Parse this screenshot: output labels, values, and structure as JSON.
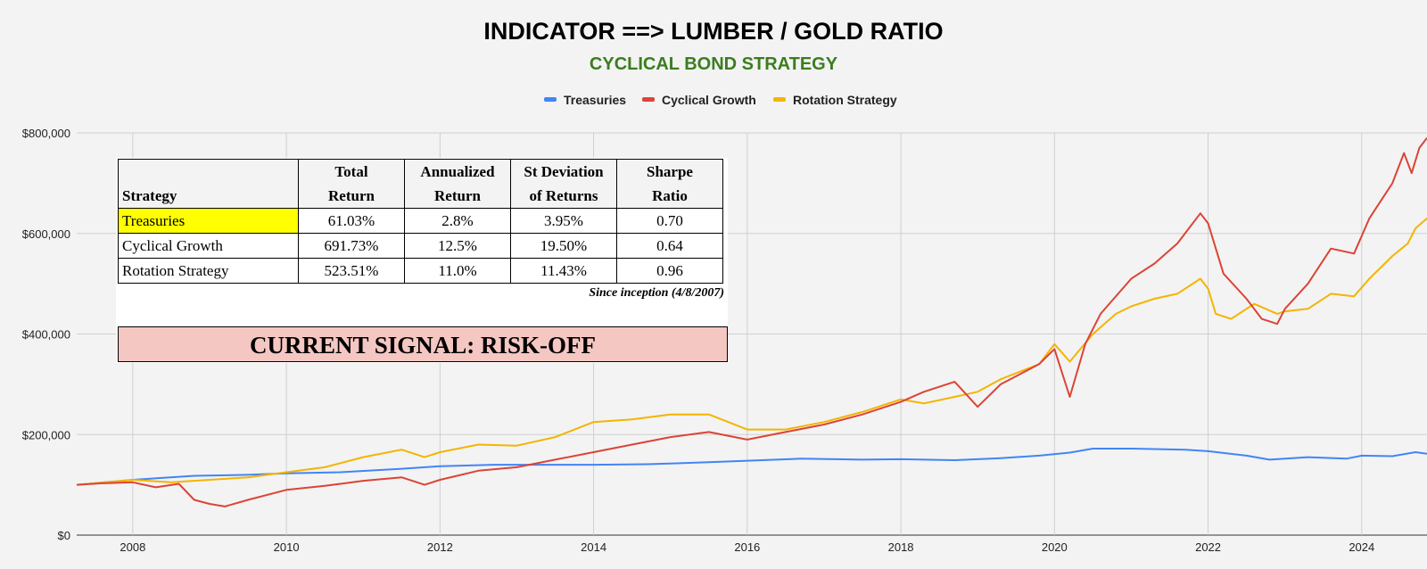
{
  "chart_data": {
    "type": "line",
    "title": "INDICATOR ==> LUMBER / GOLD RATIO",
    "subtitle": "CYCLICAL BOND STRATEGY",
    "xlim": [
      2007.27,
      2024.85
    ],
    "ylim": [
      0,
      800000
    ],
    "x_ticks": [
      "2008",
      "2010",
      "2012",
      "2014",
      "2016",
      "2018",
      "2020",
      "2022",
      "2024"
    ],
    "y_ticks": [
      "$0",
      "$200,000",
      "$400,000",
      "$600,000",
      "$800,000"
    ],
    "grid": true,
    "legend_position": "top",
    "series": [
      {
        "name": "Treasuries",
        "color": "#4285f4",
        "points": [
          [
            2007.27,
            100000
          ],
          [
            2008.0,
            110000
          ],
          [
            2008.8,
            118000
          ],
          [
            2009.5,
            120000
          ],
          [
            2010.0,
            123000
          ],
          [
            2010.7,
            125000
          ],
          [
            2011.5,
            132000
          ],
          [
            2012.0,
            137000
          ],
          [
            2012.7,
            140000
          ],
          [
            2013.5,
            140000
          ],
          [
            2014.0,
            140000
          ],
          [
            2014.7,
            141000
          ],
          [
            2015.5,
            145000
          ],
          [
            2016.0,
            148000
          ],
          [
            2016.7,
            152000
          ],
          [
            2017.5,
            150000
          ],
          [
            2018.0,
            151000
          ],
          [
            2018.7,
            149000
          ],
          [
            2019.3,
            153000
          ],
          [
            2019.8,
            158000
          ],
          [
            2020.2,
            164000
          ],
          [
            2020.5,
            172000
          ],
          [
            2021.0,
            172000
          ],
          [
            2021.7,
            170000
          ],
          [
            2022.0,
            167000
          ],
          [
            2022.5,
            158000
          ],
          [
            2022.8,
            150000
          ],
          [
            2023.3,
            155000
          ],
          [
            2023.8,
            152000
          ],
          [
            2024.0,
            158000
          ],
          [
            2024.4,
            157000
          ],
          [
            2024.7,
            165000
          ],
          [
            2024.85,
            162000
          ]
        ]
      },
      {
        "name": "Cyclical Growth",
        "color": "#db4437",
        "points": [
          [
            2007.27,
            100000
          ],
          [
            2007.6,
            103000
          ],
          [
            2008.0,
            105000
          ],
          [
            2008.3,
            95000
          ],
          [
            2008.6,
            102000
          ],
          [
            2008.8,
            70000
          ],
          [
            2009.0,
            62000
          ],
          [
            2009.2,
            57000
          ],
          [
            2009.5,
            70000
          ],
          [
            2010.0,
            90000
          ],
          [
            2010.5,
            98000
          ],
          [
            2011.0,
            108000
          ],
          [
            2011.5,
            115000
          ],
          [
            2011.8,
            100000
          ],
          [
            2012.0,
            110000
          ],
          [
            2012.5,
            128000
          ],
          [
            2013.0,
            135000
          ],
          [
            2013.5,
            150000
          ],
          [
            2014.0,
            165000
          ],
          [
            2014.5,
            180000
          ],
          [
            2015.0,
            195000
          ],
          [
            2015.5,
            205000
          ],
          [
            2016.0,
            190000
          ],
          [
            2016.5,
            205000
          ],
          [
            2017.0,
            220000
          ],
          [
            2017.5,
            240000
          ],
          [
            2018.0,
            265000
          ],
          [
            2018.3,
            285000
          ],
          [
            2018.7,
            305000
          ],
          [
            2019.0,
            255000
          ],
          [
            2019.3,
            300000
          ],
          [
            2019.8,
            340000
          ],
          [
            2020.0,
            370000
          ],
          [
            2020.2,
            275000
          ],
          [
            2020.4,
            380000
          ],
          [
            2020.6,
            440000
          ],
          [
            2021.0,
            510000
          ],
          [
            2021.3,
            540000
          ],
          [
            2021.6,
            580000
          ],
          [
            2021.9,
            640000
          ],
          [
            2022.0,
            620000
          ],
          [
            2022.2,
            520000
          ],
          [
            2022.5,
            470000
          ],
          [
            2022.7,
            430000
          ],
          [
            2022.9,
            420000
          ],
          [
            2023.0,
            450000
          ],
          [
            2023.3,
            500000
          ],
          [
            2023.6,
            570000
          ],
          [
            2023.9,
            560000
          ],
          [
            2024.1,
            630000
          ],
          [
            2024.4,
            700000
          ],
          [
            2024.55,
            760000
          ],
          [
            2024.65,
            720000
          ],
          [
            2024.75,
            770000
          ],
          [
            2024.85,
            790000
          ]
        ]
      },
      {
        "name": "Rotation Strategy",
        "color": "#f4b400",
        "points": [
          [
            2007.27,
            100000
          ],
          [
            2008.0,
            110000
          ],
          [
            2008.5,
            105000
          ],
          [
            2009.0,
            110000
          ],
          [
            2009.5,
            115000
          ],
          [
            2010.0,
            125000
          ],
          [
            2010.5,
            135000
          ],
          [
            2011.0,
            155000
          ],
          [
            2011.5,
            170000
          ],
          [
            2011.8,
            155000
          ],
          [
            2012.0,
            165000
          ],
          [
            2012.5,
            180000
          ],
          [
            2013.0,
            178000
          ],
          [
            2013.5,
            195000
          ],
          [
            2014.0,
            225000
          ],
          [
            2014.5,
            230000
          ],
          [
            2015.0,
            240000
          ],
          [
            2015.5,
            240000
          ],
          [
            2016.0,
            210000
          ],
          [
            2016.5,
            210000
          ],
          [
            2017.0,
            225000
          ],
          [
            2017.5,
            245000
          ],
          [
            2018.0,
            270000
          ],
          [
            2018.3,
            262000
          ],
          [
            2018.7,
            275000
          ],
          [
            2019.0,
            285000
          ],
          [
            2019.3,
            310000
          ],
          [
            2019.8,
            340000
          ],
          [
            2020.0,
            380000
          ],
          [
            2020.2,
            345000
          ],
          [
            2020.5,
            400000
          ],
          [
            2020.8,
            440000
          ],
          [
            2021.0,
            455000
          ],
          [
            2021.3,
            470000
          ],
          [
            2021.6,
            480000
          ],
          [
            2021.9,
            510000
          ],
          [
            2022.0,
            490000
          ],
          [
            2022.1,
            440000
          ],
          [
            2022.3,
            430000
          ],
          [
            2022.6,
            460000
          ],
          [
            2022.9,
            440000
          ],
          [
            2023.0,
            445000
          ],
          [
            2023.3,
            450000
          ],
          [
            2023.6,
            480000
          ],
          [
            2023.9,
            475000
          ],
          [
            2024.1,
            510000
          ],
          [
            2024.4,
            555000
          ],
          [
            2024.6,
            580000
          ],
          [
            2024.7,
            610000
          ],
          [
            2024.85,
            630000
          ]
        ]
      }
    ]
  },
  "table": {
    "headers": [
      {
        "line1": "",
        "line2": "Strategy"
      },
      {
        "line1": "Total",
        "line2": "Return"
      },
      {
        "line1": "Annualized",
        "line2": "Return"
      },
      {
        "line1": "St Deviation",
        "line2": "of Returns"
      },
      {
        "line1": "Sharpe",
        "line2": "Ratio"
      }
    ],
    "rows": [
      [
        "Treasuries",
        "61.03%",
        "2.8%",
        "3.95%",
        "0.70"
      ],
      [
        "Cyclical Growth",
        "691.73%",
        "12.5%",
        "19.50%",
        "0.64"
      ],
      [
        "Rotation Strategy",
        "523.51%",
        "11.0%",
        "11.43%",
        "0.96"
      ]
    ],
    "highlight_color": "#ffff00"
  },
  "since_inception": "Since inception (4/8/2007)",
  "signal": {
    "text": "CURRENT SIGNAL: RISK-OFF",
    "color": "#f4c7c3"
  }
}
